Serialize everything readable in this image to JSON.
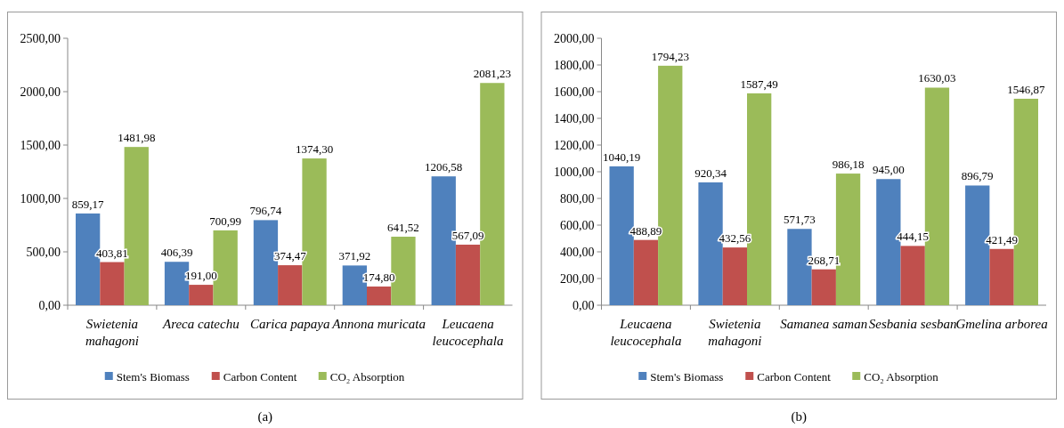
{
  "chart_data": [
    {
      "type": "bar",
      "categories": [
        "Swietenia\nmahagoni",
        "Areca catechu",
        "Carica papaya",
        "Annona muricata",
        "Leucaena\nleucocephala"
      ],
      "series": [
        {
          "name": "Stem's Biomass",
          "color": "#4f81bd",
          "values": [
            859.17,
            406.39,
            796.74,
            371.92,
            1206.58
          ],
          "value_labels": [
            "859,17",
            "406,39",
            "796,74",
            "371,92",
            "1206,58"
          ]
        },
        {
          "name": "Carbon Content",
          "color": "#c0504d",
          "values": [
            403.81,
            191.0,
            374.47,
            174.8,
            567.09
          ],
          "value_labels": [
            "403,81",
            "191,00",
            "374,47",
            "174,80",
            "567,09"
          ]
        },
        {
          "name": "CO₂ Absorption",
          "color": "#9bbb59",
          "values": [
            1481.98,
            700.99,
            1374.3,
            641.52,
            2081.23
          ],
          "value_labels": [
            "1481,98",
            "700,99",
            "1374,30",
            "641,52",
            "2081,23"
          ]
        }
      ],
      "ylim": [
        0,
        2500
      ],
      "yticks": [
        {
          "value": 0,
          "label": "0,00"
        },
        {
          "value": 500,
          "label": "500,00"
        },
        {
          "value": 1000,
          "label": "1000,00"
        },
        {
          "value": 1500,
          "label": "1500,00"
        },
        {
          "value": 2000,
          "label": "2000,00"
        },
        {
          "value": 2500,
          "label": "2500,00"
        }
      ],
      "legend": "bottom",
      "annotations": [
        "(a)"
      ]
    },
    {
      "type": "bar",
      "categories": [
        "Leucaena\nleucocephala",
        "Swietenia\nmahagoni",
        "Samanea saman",
        "Sesbania sesban",
        "Gmelina arborea"
      ],
      "series": [
        {
          "name": "Stem's Biomass",
          "color": "#4f81bd",
          "values": [
            1040.19,
            920.34,
            571.73,
            945.0,
            896.79
          ],
          "value_labels": [
            "1040,19",
            "920,34",
            "571,73",
            "945,00",
            "896,79"
          ]
        },
        {
          "name": "Carbon Content",
          "color": "#c0504d",
          "values": [
            488.89,
            432.56,
            268.71,
            444.15,
            421.49
          ],
          "value_labels": [
            "488,89",
            "432,56",
            "268,71",
            "444,15",
            "421,49"
          ]
        },
        {
          "name": "CO₂ Absorption",
          "color": "#9bbb59",
          "values": [
            1794.23,
            1587.49,
            986.18,
            1630.03,
            1546.87
          ],
          "value_labels": [
            "1794,23",
            "1587,49",
            "986,18",
            "1630,03",
            "1546,87"
          ]
        }
      ],
      "ylim": [
        0,
        2000
      ],
      "yticks": [
        {
          "value": 0,
          "label": "0,00"
        },
        {
          "value": 200,
          "label": "200,00"
        },
        {
          "value": 400,
          "label": "400,00"
        },
        {
          "value": 600,
          "label": "600,00"
        },
        {
          "value": 800,
          "label": "800,00"
        },
        {
          "value": 1000,
          "label": "1000,00"
        },
        {
          "value": 1200,
          "label": "1200,00"
        },
        {
          "value": 1400,
          "label": "1400,00"
        },
        {
          "value": 1600,
          "label": "1600,00"
        },
        {
          "value": 1800,
          "label": "1800,00"
        },
        {
          "value": 2000,
          "label": "2000,00"
        }
      ],
      "legend": "bottom",
      "annotations": [
        "(b)"
      ]
    }
  ]
}
